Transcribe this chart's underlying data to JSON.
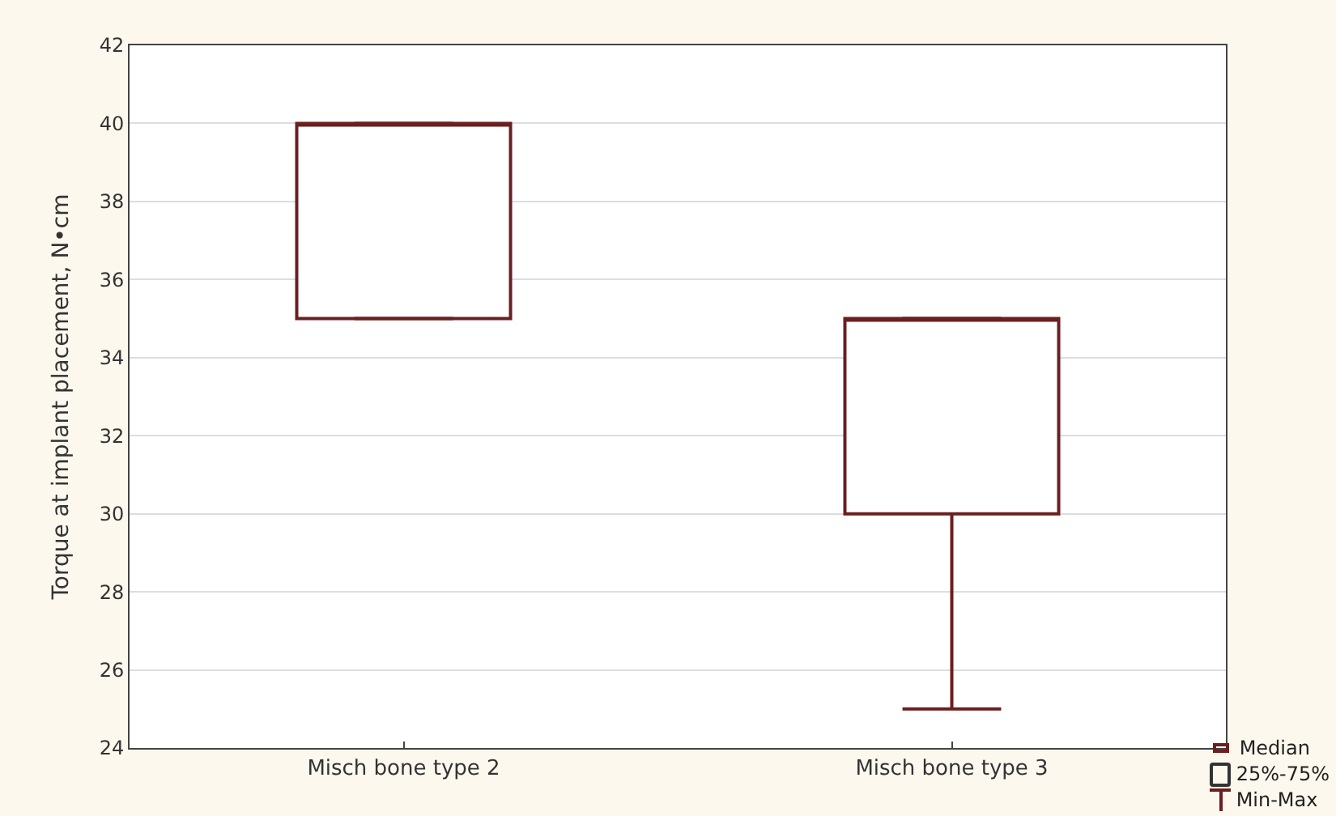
{
  "chart_data": {
    "type": "box",
    "ylabel": "Torque at implant placement, N•cm",
    "categories": [
      "Misch bone type 2",
      "Misch bone type 3"
    ],
    "series": [
      {
        "color": "#6b1f1f",
        "boxes": [
          {
            "low": 35,
            "q1": 35,
            "median": 40,
            "q3": 40,
            "high": 40
          },
          {
            "low": 25,
            "q1": 30,
            "median": 35,
            "q3": 35,
            "high": 35
          }
        ]
      }
    ],
    "ylim": [
      24,
      42
    ],
    "yticks": [
      24,
      26,
      28,
      30,
      32,
      34,
      36,
      38,
      40,
      42
    ],
    "grid": "y",
    "annotations": [
      "Median",
      "25%-75%",
      "Min-Max"
    ]
  }
}
